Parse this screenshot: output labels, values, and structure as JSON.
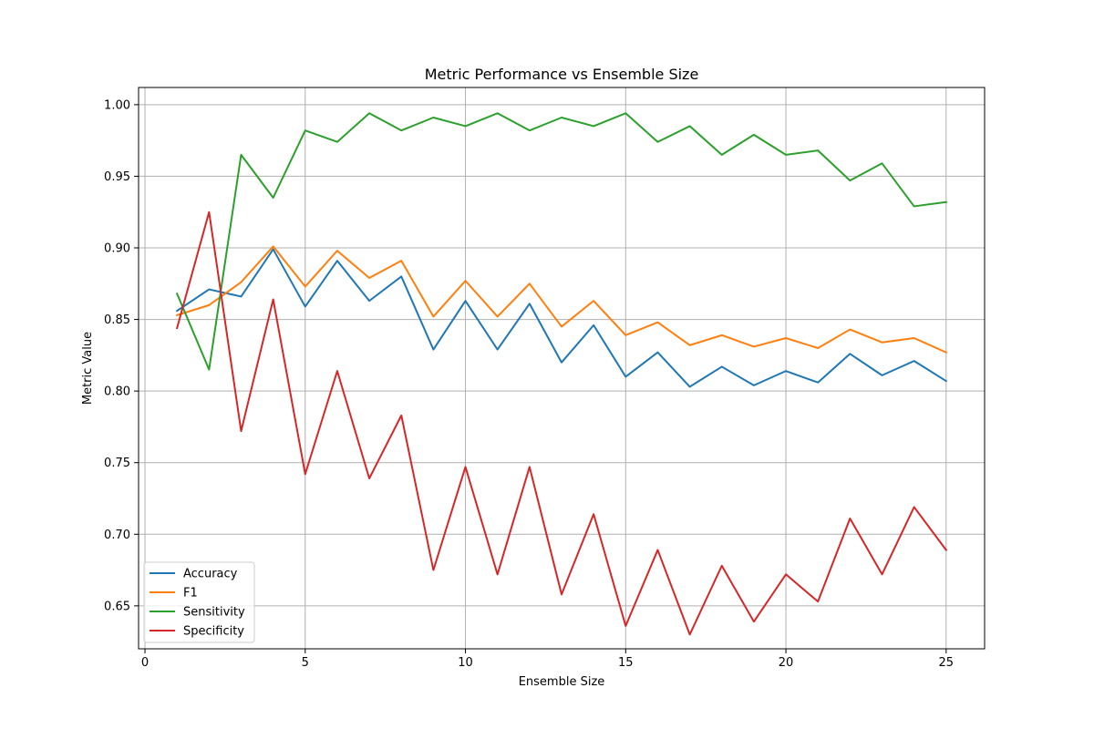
{
  "chart_data": {
    "type": "line",
    "title": "Metric Performance vs Ensemble Size",
    "xlabel": "Ensemble Size",
    "ylabel": "Metric Value",
    "xlim": [
      -0.2,
      26.2
    ],
    "ylim": [
      0.62,
      1.012
    ],
    "xticks": [
      0,
      5,
      10,
      15,
      20,
      25
    ],
    "yticks": [
      0.65,
      0.7,
      0.75,
      0.8,
      0.85,
      0.9,
      0.95,
      1.0
    ],
    "grid": true,
    "legend_position": "lower-left",
    "x": [
      1,
      2,
      3,
      4,
      5,
      6,
      7,
      8,
      9,
      10,
      11,
      12,
      13,
      14,
      15,
      16,
      17,
      18,
      19,
      20,
      21,
      22,
      23,
      24,
      25
    ],
    "series": [
      {
        "name": "Accuracy",
        "color": "#1f77b4",
        "values": [
          0.856,
          0.871,
          0.866,
          0.899,
          0.859,
          0.891,
          0.863,
          0.88,
          0.829,
          0.863,
          0.829,
          0.861,
          0.82,
          0.846,
          0.81,
          0.827,
          0.803,
          0.817,
          0.804,
          0.814,
          0.806,
          0.826,
          0.811,
          0.821,
          0.807
        ]
      },
      {
        "name": "F1",
        "color": "#ff7f0e",
        "values": [
          0.853,
          0.86,
          0.876,
          0.901,
          0.873,
          0.898,
          0.879,
          0.891,
          0.852,
          0.877,
          0.852,
          0.875,
          0.845,
          0.863,
          0.839,
          0.848,
          0.832,
          0.839,
          0.831,
          0.837,
          0.83,
          0.843,
          0.834,
          0.837,
          0.827
        ]
      },
      {
        "name": "Sensitivity",
        "color": "#2ca02c",
        "values": [
          0.868,
          0.815,
          0.965,
          0.935,
          0.982,
          0.974,
          0.994,
          0.982,
          0.991,
          0.985,
          0.994,
          0.982,
          0.991,
          0.985,
          0.994,
          0.974,
          0.985,
          0.965,
          0.979,
          0.965,
          0.968,
          0.947,
          0.959,
          0.929,
          0.932
        ]
      },
      {
        "name": "Specificity",
        "color": "#d62728",
        "values": [
          0.844,
          0.925,
          0.772,
          0.864,
          0.742,
          0.814,
          0.739,
          0.783,
          0.675,
          0.747,
          0.672,
          0.747,
          0.658,
          0.714,
          0.636,
          0.689,
          0.63,
          0.678,
          0.639,
          0.672,
          0.653,
          0.711,
          0.672,
          0.719,
          0.689
        ]
      }
    ]
  }
}
